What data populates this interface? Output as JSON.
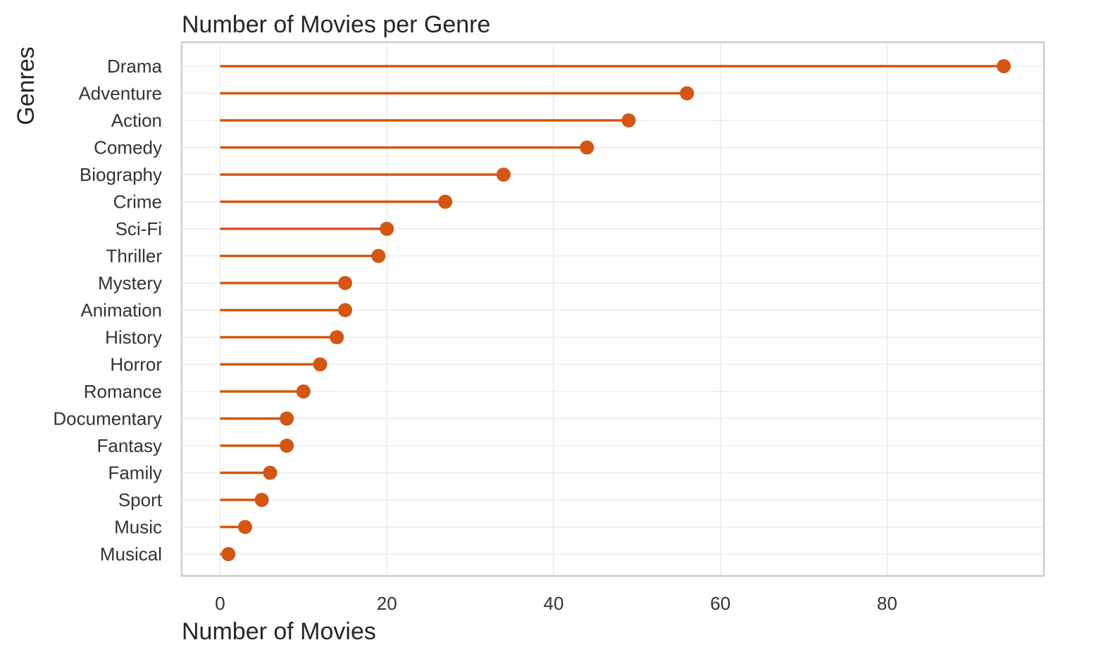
{
  "chart_data": {
    "type": "lollipop",
    "title": "Number of Movies per Genre",
    "xlabel": "Number of Movies",
    "ylabel": "Genres",
    "xlim": [
      -4.6,
      98.8
    ],
    "xticks": [
      0,
      20,
      40,
      60,
      80
    ],
    "grid": true,
    "color": "#d35613",
    "categories": [
      "Drama",
      "Adventure",
      "Action",
      "Comedy",
      "Biography",
      "Crime",
      "Sci-Fi",
      "Thriller",
      "Mystery",
      "Animation",
      "History",
      "Horror",
      "Romance",
      "Documentary",
      "Fantasy",
      "Family",
      "Sport",
      "Music",
      "Musical"
    ],
    "values": [
      94,
      56,
      49,
      44,
      34,
      27,
      20,
      19,
      15,
      15,
      14,
      12,
      10,
      8,
      8,
      6,
      5,
      3,
      1
    ]
  }
}
